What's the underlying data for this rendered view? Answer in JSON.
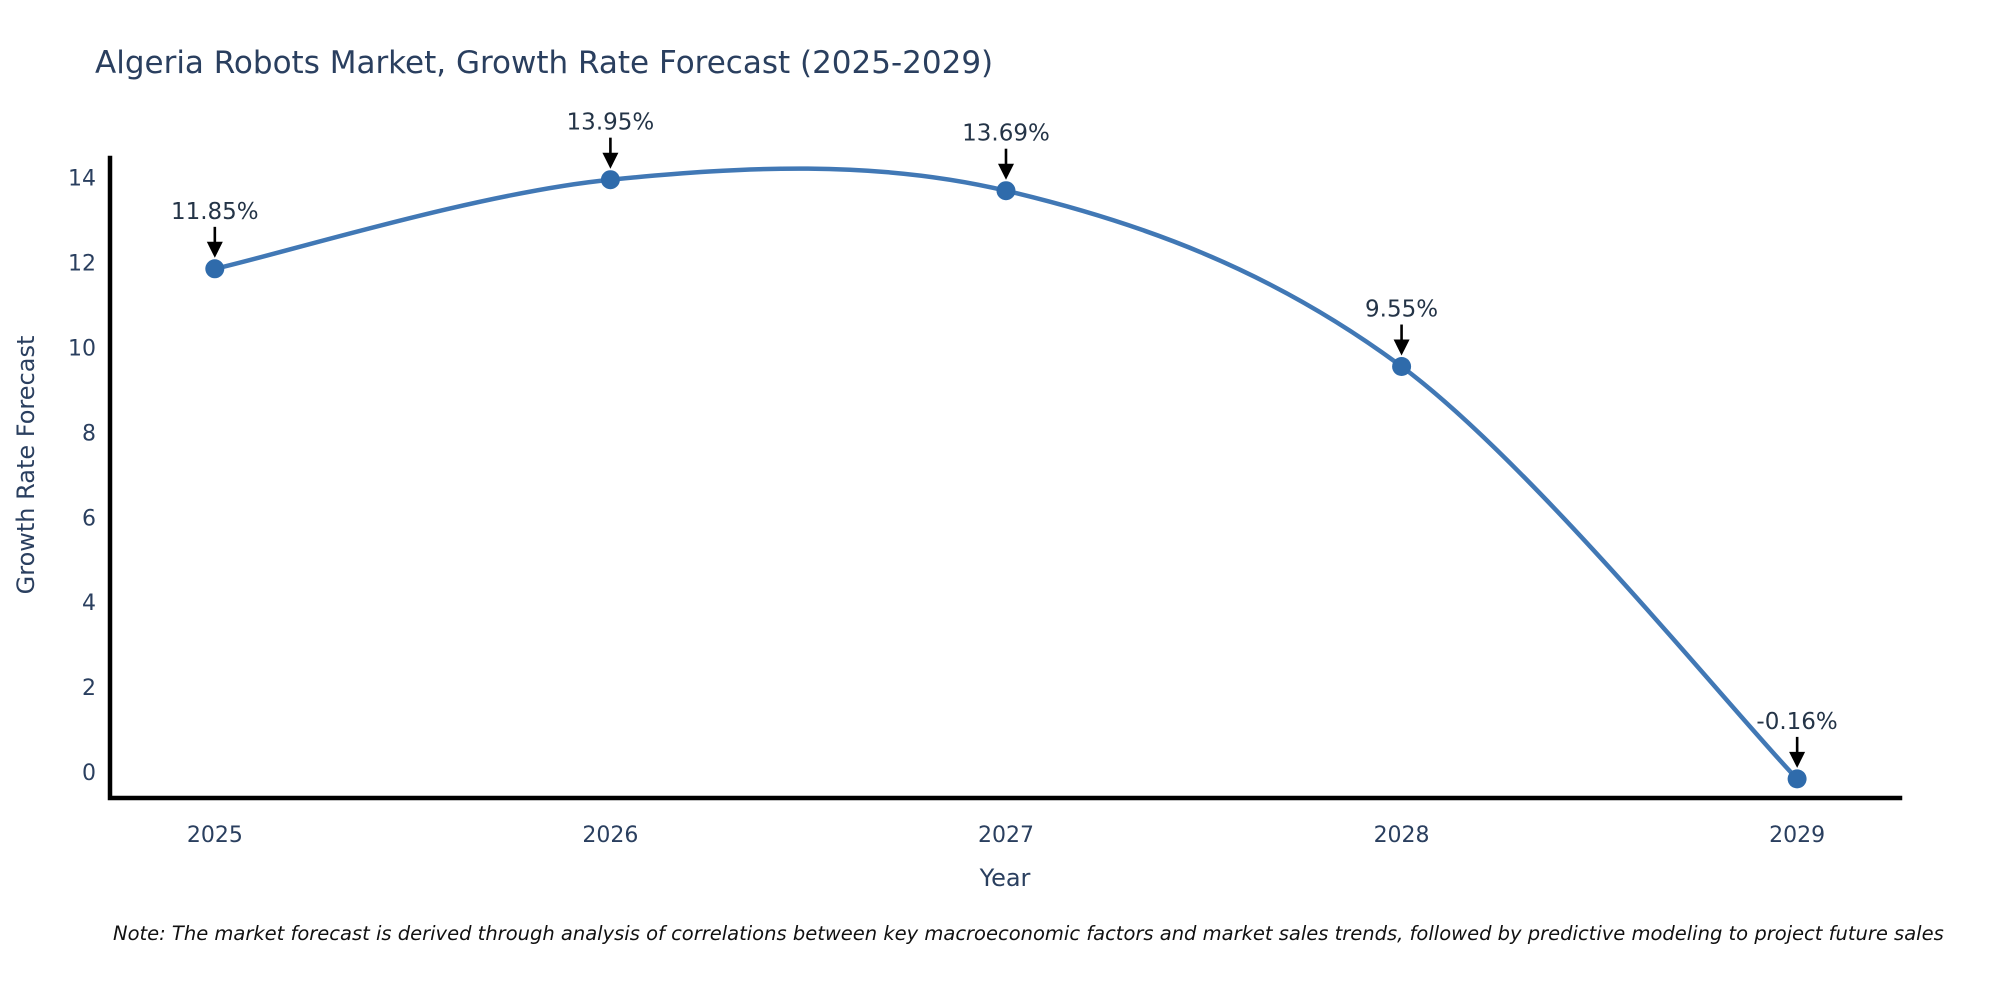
{
  "figure": {
    "note": "Note: The market forecast is derived through analysis of correlations between key macroeconomic factors and market sales trends, followed by predictive modeling to project future sales"
  },
  "chart_data": {
    "type": "line",
    "title": "Algeria Robots Market, Growth Rate Forecast (2025-2029)",
    "xlabel": "Year",
    "ylabel": "Growth Rate Forecast",
    "x": [
      2025,
      2026,
      2027,
      2028,
      2029
    ],
    "y": [
      11.85,
      13.95,
      13.69,
      9.55,
      -0.16
    ],
    "point_labels": [
      "11.85%",
      "13.95%",
      "13.69%",
      "9.55%",
      "-0.16%"
    ],
    "x_tick_labels": [
      "2025",
      "2026",
      "2027",
      "2028",
      "2029"
    ],
    "y_tick_values": [
      0,
      2,
      4,
      6,
      8,
      10,
      12,
      14
    ],
    "xlim": [
      2024.735,
      2029.26
    ],
    "ylim": [
      -0.61,
      14.46
    ],
    "line_shape": "spline",
    "grid": false,
    "legend_position": "none",
    "colors": {
      "line": "#4178b5",
      "marker": "#2f6bab",
      "arrow": "#000000",
      "axis": "#000000",
      "text": "#2a3f5f"
    }
  }
}
